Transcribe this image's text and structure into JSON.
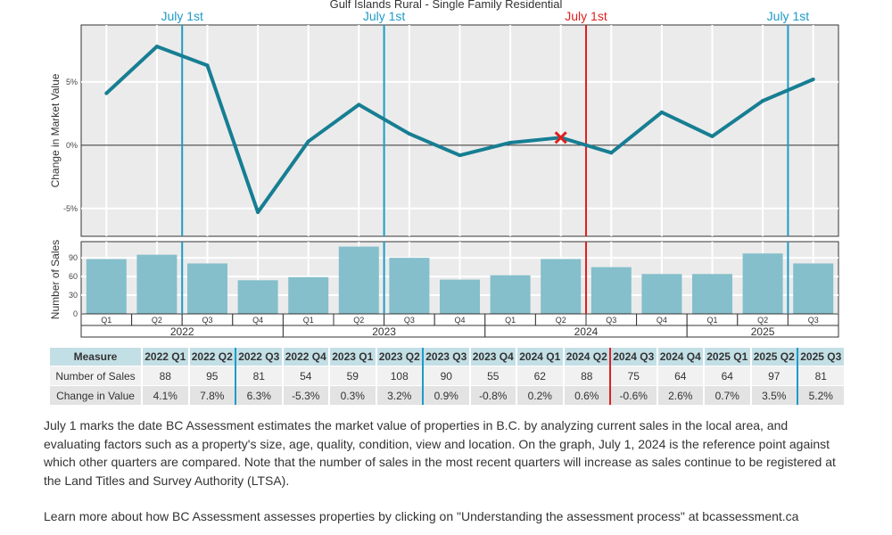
{
  "chart_data": {
    "type": "line+bar",
    "title": "Gulf Islands Rural - Single Family Residential",
    "quarters": [
      "Q1",
      "Q2",
      "Q3",
      "Q4",
      "Q1",
      "Q2",
      "Q3",
      "Q4",
      "Q1",
      "Q2",
      "Q3",
      "Q4",
      "Q1",
      "Q2",
      "Q3"
    ],
    "years": [
      {
        "label": "2022",
        "count": 4
      },
      {
        "label": "2023",
        "count": 4
      },
      {
        "label": "2024",
        "count": 4
      },
      {
        "label": "2025",
        "count": 3
      }
    ],
    "periods": [
      "2022 Q1",
      "2022 Q2",
      "2022 Q3",
      "2022 Q4",
      "2023 Q1",
      "2023 Q2",
      "2023 Q3",
      "2023 Q4",
      "2024 Q1",
      "2024 Q2",
      "2024 Q3",
      "2024 Q4",
      "2025 Q1",
      "2025 Q2",
      "2025 Q3"
    ],
    "change_in_value": [
      4.1,
      7.8,
      6.3,
      -5.3,
      0.3,
      3.2,
      0.9,
      -0.8,
      0.2,
      0.6,
      -0.6,
      2.6,
      0.7,
      3.5,
      5.2
    ],
    "number_of_sales": [
      88,
      95,
      81,
      54,
      59,
      108,
      90,
      55,
      62,
      88,
      75,
      64,
      64,
      97,
      81
    ],
    "line_ylabel": "Change in Market Value",
    "line_yticks": [
      "-5%",
      "0%",
      "5%"
    ],
    "line_ylim": [
      -7.2,
      9.5
    ],
    "bar_ylabel": "Number of Sales",
    "bar_yticks": [
      0,
      30,
      60,
      90
    ],
    "bar_ylim": [
      0,
      116
    ],
    "markers": [
      {
        "label": "July 1st",
        "after": 1,
        "color": "#1f9bc7"
      },
      {
        "label": "July 1st",
        "after": 5,
        "color": "#1f9bc7"
      },
      {
        "label": "July 1st",
        "after": 9,
        "color": "#e01f1f",
        "reference": true
      },
      {
        "label": "July 1st",
        "after": 13,
        "color": "#1f9bc7"
      }
    ],
    "line_color": "#177e93",
    "bar_color": "#84bfcb",
    "reference_index": 9
  },
  "table": {
    "header": "Measure",
    "rows": [
      {
        "label": "Number of Sales",
        "values": [
          "88",
          "95",
          "81",
          "54",
          "59",
          "108",
          "90",
          "55",
          "62",
          "88",
          "75",
          "64",
          "64",
          "97",
          "81"
        ]
      },
      {
        "label": "Change in Value",
        "values": [
          "4.1%",
          "7.8%",
          "6.3%",
          "-5.3%",
          "0.3%",
          "3.2%",
          "0.9%",
          "-0.8%",
          "0.2%",
          "0.6%",
          "-0.6%",
          "2.6%",
          "0.7%",
          "3.5%",
          "5.2%"
        ]
      }
    ]
  },
  "notes": {
    "p1": "July 1 marks the date BC Assessment estimates the market value of properties in B.C. by analyzing current sales in the local area, and evaluating factors such as a property's size, age, quality, condition, view and location. On the graph, July 1, 2024 is the reference point against which other quarters are compared. Note that the number of sales in the most recent quarters will increase as sales continue to be registered at the Land Titles and Survey Authority (LTSA).",
    "p2": "Learn more about how BC Assessment assesses properties by clicking on \"Understanding the assessment process\" at bcassessment.ca"
  }
}
